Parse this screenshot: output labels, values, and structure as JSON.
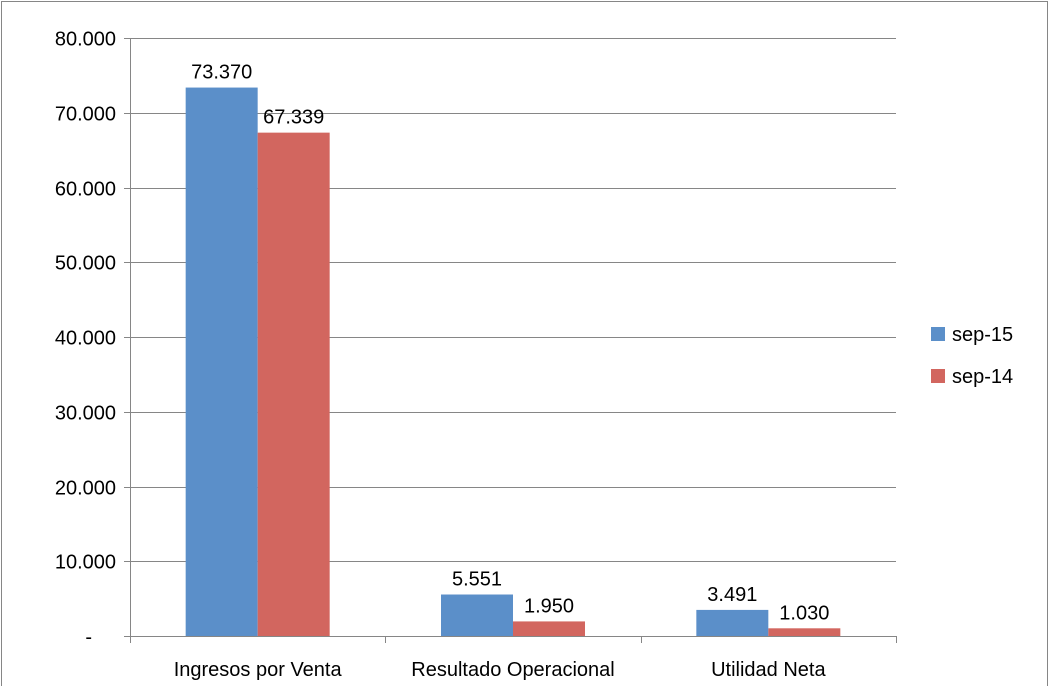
{
  "chart_data": {
    "type": "bar",
    "categories": [
      "Ingresos por Venta",
      "Resultado Operacional",
      "Utilidad Neta"
    ],
    "series": [
      {
        "name": "sep-15",
        "values": [
          73370,
          5551,
          3491
        ],
        "labels": [
          "73.370",
          "5.551",
          "3.491"
        ],
        "color": "#5B8FC9"
      },
      {
        "name": "sep-14",
        "values": [
          67339,
          1950,
          1030
        ],
        "labels": [
          "67.339",
          "1.950",
          "1.030"
        ],
        "color": "#D2665F"
      }
    ],
    "ylim": [
      0,
      80000
    ],
    "yticks": [
      0,
      10000,
      20000,
      30000,
      40000,
      50000,
      60000,
      70000,
      80000
    ],
    "ytick_labels": [
      "-",
      "10.000",
      "20.000",
      "30.000",
      "40.000",
      "50.000",
      "60.000",
      "70.000",
      "80.000"
    ],
    "grid": true,
    "legend_position": "right",
    "border_color": "#868686",
    "grid_color": "#868686"
  }
}
